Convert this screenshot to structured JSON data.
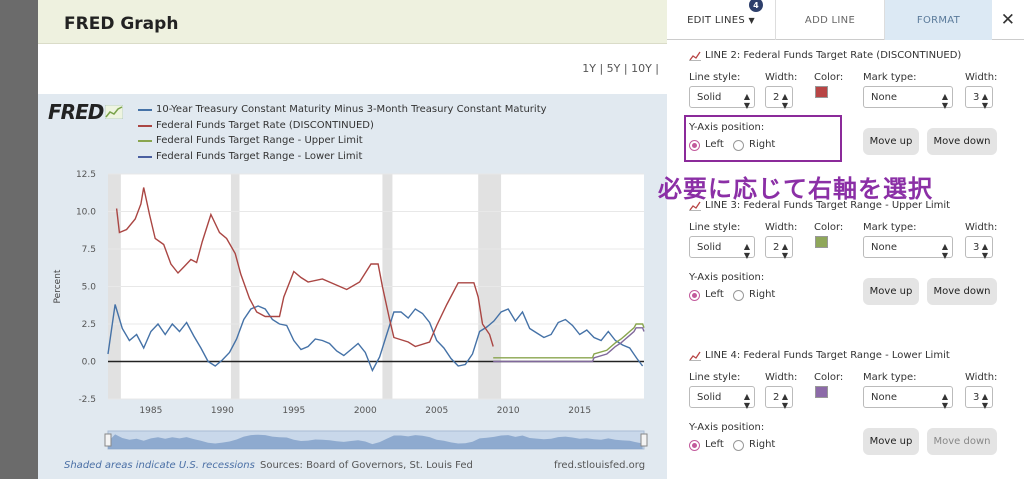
{
  "card": {
    "title": "FRED Graph",
    "ranges": "1Y | 5Y | 10Y |",
    "logo": "FRED"
  },
  "legend": [
    {
      "label": "10-Year Treasury Constant Maturity Minus 3-Month Treasury Constant Maturity",
      "color": "#4572a7"
    },
    {
      "label": "Federal Funds Target Rate (DISCONTINUED)",
      "color": "#aa4643"
    },
    {
      "label": "Federal Funds Target Range - Upper Limit",
      "color": "#89a54e"
    },
    {
      "label": "Federal Funds Target Range - Lower Limit",
      "color": "#80699b"
    }
  ],
  "chart_data": {
    "type": "line",
    "ylabel": "Percent",
    "ylim": [
      -2.5,
      12.5
    ],
    "xlim": [
      1982,
      2019.5
    ],
    "yticks": [
      "12.5",
      "10.0",
      "7.5",
      "5.0",
      "2.5",
      "0.0",
      "-2.5"
    ],
    "xticks": [
      "1985",
      "1990",
      "1995",
      "2000",
      "2005",
      "2010",
      "2015"
    ],
    "recessions": [
      [
        1982,
        1982.9
      ],
      [
        1990.6,
        1991.2
      ],
      [
        2001.2,
        2001.9
      ],
      [
        2007.9,
        2009.5
      ]
    ],
    "series": [
      {
        "name": "10-Year Treasury Constant Maturity Minus 3-Month Treasury Constant Maturity",
        "color": "#4572a7",
        "points": [
          [
            1982,
            0.5
          ],
          [
            1982.5,
            3.8
          ],
          [
            1983,
            2.2
          ],
          [
            1983.5,
            1.4
          ],
          [
            1984,
            1.8
          ],
          [
            1984.5,
            0.9
          ],
          [
            1985,
            2.0
          ],
          [
            1985.5,
            2.5
          ],
          [
            1986,
            1.8
          ],
          [
            1986.5,
            2.5
          ],
          [
            1987,
            2.0
          ],
          [
            1987.5,
            2.6
          ],
          [
            1988,
            1.7
          ],
          [
            1988.5,
            0.9
          ],
          [
            1989,
            0.0
          ],
          [
            1989.5,
            -0.3
          ],
          [
            1990,
            0.1
          ],
          [
            1990.5,
            0.6
          ],
          [
            1991,
            1.5
          ],
          [
            1991.5,
            2.8
          ],
          [
            1992,
            3.5
          ],
          [
            1992.5,
            3.7
          ],
          [
            1993,
            3.5
          ],
          [
            1993.5,
            2.8
          ],
          [
            1994,
            2.5
          ],
          [
            1994.5,
            2.4
          ],
          [
            1995,
            1.4
          ],
          [
            1995.5,
            0.8
          ],
          [
            1996,
            1.0
          ],
          [
            1996.5,
            1.5
          ],
          [
            1997,
            1.4
          ],
          [
            1997.5,
            1.2
          ],
          [
            1998,
            0.7
          ],
          [
            1998.5,
            0.4
          ],
          [
            1999,
            0.8
          ],
          [
            1999.5,
            1.2
          ],
          [
            2000,
            0.6
          ],
          [
            2000.5,
            -0.6
          ],
          [
            2001,
            0.3
          ],
          [
            2001.5,
            1.8
          ],
          [
            2002,
            3.3
          ],
          [
            2002.5,
            3.3
          ],
          [
            2003,
            2.9
          ],
          [
            2003.5,
            3.5
          ],
          [
            2004,
            3.2
          ],
          [
            2004.5,
            2.6
          ],
          [
            2005,
            1.4
          ],
          [
            2005.5,
            0.9
          ],
          [
            2006,
            0.2
          ],
          [
            2006.5,
            -0.3
          ],
          [
            2007,
            -0.2
          ],
          [
            2007.5,
            0.5
          ],
          [
            2008,
            2.0
          ],
          [
            2008.5,
            2.3
          ],
          [
            2009,
            2.7
          ],
          [
            2009.5,
            3.3
          ],
          [
            2010,
            3.5
          ],
          [
            2010.5,
            2.7
          ],
          [
            2011,
            3.3
          ],
          [
            2011.5,
            2.2
          ],
          [
            2012,
            1.9
          ],
          [
            2012.5,
            1.6
          ],
          [
            2013,
            1.8
          ],
          [
            2013.5,
            2.6
          ],
          [
            2014,
            2.8
          ],
          [
            2014.5,
            2.4
          ],
          [
            2015,
            1.8
          ],
          [
            2015.5,
            2.1
          ],
          [
            2016,
            1.6
          ],
          [
            2016.5,
            1.4
          ],
          [
            2017,
            2.0
          ],
          [
            2017.5,
            1.4
          ],
          [
            2018,
            1.1
          ],
          [
            2018.5,
            0.9
          ],
          [
            2019,
            0.2
          ],
          [
            2019.4,
            -0.3
          ]
        ]
      },
      {
        "name": "Federal Funds Target Rate (DISCONTINUED)",
        "color": "#aa4643",
        "points": [
          [
            1982.6,
            10.2
          ],
          [
            1982.8,
            8.6
          ],
          [
            1983.3,
            8.8
          ],
          [
            1983.9,
            9.5
          ],
          [
            1984.3,
            10.5
          ],
          [
            1984.5,
            11.6
          ],
          [
            1984.9,
            9.8
          ],
          [
            1985.3,
            8.2
          ],
          [
            1985.9,
            7.8
          ],
          [
            1986.4,
            6.5
          ],
          [
            1986.9,
            5.9
          ],
          [
            1987.3,
            6.3
          ],
          [
            1987.8,
            6.8
          ],
          [
            1988.2,
            6.6
          ],
          [
            1988.6,
            8.0
          ],
          [
            1989.2,
            9.8
          ],
          [
            1989.8,
            8.6
          ],
          [
            1990.3,
            8.2
          ],
          [
            1990.9,
            7.2
          ],
          [
            1991.3,
            5.8
          ],
          [
            1991.9,
            4.2
          ],
          [
            1992.4,
            3.3
          ],
          [
            1993,
            3.0
          ],
          [
            1994,
            3.0
          ],
          [
            1994.3,
            4.3
          ],
          [
            1995,
            6.0
          ],
          [
            1995.5,
            5.6
          ],
          [
            1996,
            5.3
          ],
          [
            1997,
            5.5
          ],
          [
            1998.7,
            4.8
          ],
          [
            1999.6,
            5.3
          ],
          [
            2000.4,
            6.5
          ],
          [
            2000.9,
            6.5
          ],
          [
            2001.2,
            5.0
          ],
          [
            2001.7,
            2.8
          ],
          [
            2002,
            1.6
          ],
          [
            2003,
            1.3
          ],
          [
            2003.5,
            1.0
          ],
          [
            2004.5,
            1.3
          ],
          [
            2005,
            2.4
          ],
          [
            2005.7,
            3.8
          ],
          [
            2006.5,
            5.25
          ],
          [
            2007.6,
            5.25
          ],
          [
            2007.9,
            4.3
          ],
          [
            2008.2,
            2.5
          ],
          [
            2008.7,
            1.8
          ],
          [
            2008.95,
            1.0
          ]
        ]
      },
      {
        "name": "Federal Funds Target Range - Upper Limit",
        "color": "#89a54e",
        "points": [
          [
            2008.95,
            0.25
          ],
          [
            2015.9,
            0.25
          ],
          [
            2016,
            0.5
          ],
          [
            2016.9,
            0.75
          ],
          [
            2017.2,
            1.0
          ],
          [
            2017.5,
            1.25
          ],
          [
            2017.9,
            1.5
          ],
          [
            2018.2,
            1.75
          ],
          [
            2018.5,
            2.0
          ],
          [
            2018.8,
            2.25
          ],
          [
            2018.95,
            2.5
          ],
          [
            2019.4,
            2.5
          ],
          [
            2019.5,
            2.25
          ]
        ]
      },
      {
        "name": "Federal Funds Target Range - Lower Limit",
        "color": "#80699b",
        "points": [
          [
            2008.95,
            0.0
          ],
          [
            2015.9,
            0.0
          ],
          [
            2016,
            0.25
          ],
          [
            2016.9,
            0.5
          ],
          [
            2017.2,
            0.75
          ],
          [
            2017.5,
            1.0
          ],
          [
            2017.9,
            1.25
          ],
          [
            2018.2,
            1.5
          ],
          [
            2018.5,
            1.75
          ],
          [
            2018.8,
            2.0
          ],
          [
            2018.95,
            2.25
          ],
          [
            2019.4,
            2.25
          ],
          [
            2019.5,
            2.0
          ]
        ]
      }
    ]
  },
  "footer": {
    "note": "Shaded areas indicate U.S. recessions",
    "sources": "Sources: Board of Governors, St. Louis Fed",
    "site": "fred.stlouisfed.org"
  },
  "panel": {
    "tabs": {
      "edit": "EDIT LINES",
      "edit_badge": "4",
      "add": "ADD LINE",
      "format": "FORMAT",
      "close": "✕"
    },
    "labels": {
      "line_style": "Line style:",
      "width": "Width:",
      "color": "Color:",
      "mark_type": "Mark type:",
      "yaxis": "Y-Axis position:",
      "left": "Left",
      "right": "Right",
      "move_up": "Move up",
      "move_down": "Move down"
    },
    "lines": [
      {
        "title": "LINE 2: Federal Funds Target Rate (DISCONTINUED)",
        "style": "Solid",
        "width": "2",
        "color": "#b84545",
        "mark": "None",
        "mark_width": "3"
      },
      {
        "title": "LINE 3: Federal Funds Target Range - Upper Limit",
        "style": "Solid",
        "width": "2",
        "color": "#8fa75a",
        "mark": "None",
        "mark_width": "3"
      },
      {
        "title": "LINE 4: Federal Funds Target Range - Lower Limit",
        "style": "Solid",
        "width": "2",
        "color": "#8c6aa8",
        "mark": "None",
        "mark_width": "3"
      }
    ]
  },
  "annotation": "必要に応じて右軸を選択"
}
